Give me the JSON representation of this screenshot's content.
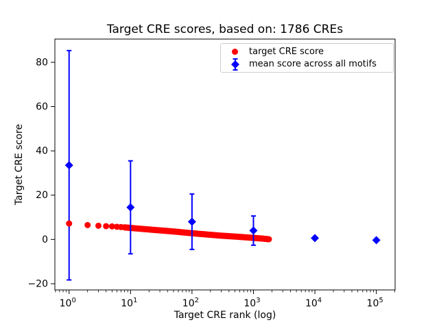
{
  "chart_data": {
    "type": "scatter",
    "title": "Target CRE scores, based on: 1786 CREs",
    "xlabel": "Target CRE rank (log)",
    "ylabel": "Target CRE score",
    "x_scale": "log",
    "grid": false,
    "xlim": [
      0.587,
      202000
    ],
    "ylim": [
      -22.8,
      90.5
    ],
    "x_major_ticks": [
      1,
      10,
      100,
      1000,
      10000,
      100000
    ],
    "x_tick_exponents": [
      0,
      1,
      2,
      3,
      4,
      5
    ],
    "x_tick_mantissa": "10",
    "y_ticks": [
      -20,
      0,
      20,
      40,
      60,
      80
    ],
    "y_tick_labels": [
      "−20",
      "0",
      "20",
      "40",
      "60",
      "80"
    ],
    "legend_position": "upper right",
    "series": [
      {
        "name": "target CRE score",
        "type": "scatter-dense",
        "color": "#ff0000",
        "marker": "circle",
        "marker_size_px": 9,
        "n_points": 1786,
        "curve_anchors": [
          [
            1,
            7.2
          ],
          [
            2,
            6.5
          ],
          [
            3,
            6.2
          ],
          [
            4,
            6.0
          ],
          [
            5,
            5.9
          ],
          [
            7,
            5.6
          ],
          [
            10,
            5.2
          ],
          [
            20,
            4.5
          ],
          [
            30,
            4.1
          ],
          [
            50,
            3.6
          ],
          [
            100,
            2.8
          ],
          [
            200,
            2.1
          ],
          [
            300,
            1.7
          ],
          [
            500,
            1.3
          ],
          [
            1000,
            0.7
          ],
          [
            1400,
            0.4
          ],
          [
            1786,
            0.1
          ]
        ]
      },
      {
        "name": "mean score across all motifs",
        "type": "errorbar",
        "color": "#0000ff",
        "marker": "diamond",
        "marker_size_px": 12,
        "points": [
          {
            "x": 1,
            "y": 33.5,
            "yerr": 51.8
          },
          {
            "x": 10,
            "y": 14.5,
            "yerr": 21.0
          },
          {
            "x": 100,
            "y": 8.0,
            "yerr": 12.5
          },
          {
            "x": 1000,
            "y": 4.0,
            "yerr": 6.6
          },
          {
            "x": 10000,
            "y": 0.6,
            "yerr": 1.0
          },
          {
            "x": 100000,
            "y": -0.3,
            "yerr": 0.5
          }
        ]
      }
    ]
  }
}
